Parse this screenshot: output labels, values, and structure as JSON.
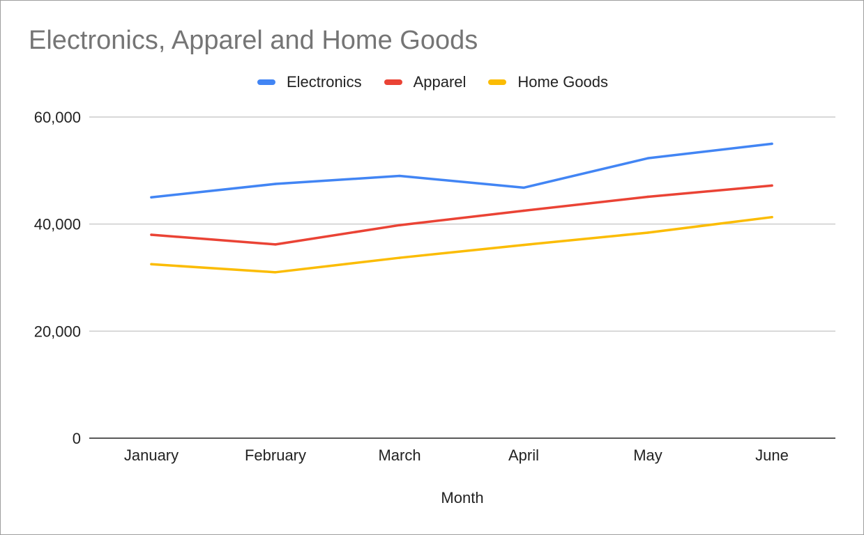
{
  "chart_data": {
    "type": "line",
    "title": "Electronics, Apparel and Home Goods",
    "xlabel": "Month",
    "ylabel": "",
    "categories": [
      "January",
      "February",
      "March",
      "April",
      "May",
      "June"
    ],
    "ylim": [
      0,
      60000
    ],
    "yticks": [
      "0",
      "20,000",
      "40,000",
      "60,000"
    ],
    "ytick_values": [
      0,
      20000,
      40000,
      60000
    ],
    "grid": true,
    "legend_position": "top-center",
    "series": [
      {
        "name": "Electronics",
        "color": "#4285f4",
        "values": [
          45000,
          47500,
          49000,
          46800,
          52300,
          55000
        ]
      },
      {
        "name": "Apparel",
        "color": "#ea4335",
        "values": [
          38000,
          36200,
          39800,
          42500,
          45100,
          47200
        ]
      },
      {
        "name": "Home Goods",
        "color": "#fbbc04",
        "values": [
          32500,
          31000,
          33700,
          36100,
          38400,
          41300
        ]
      }
    ]
  }
}
